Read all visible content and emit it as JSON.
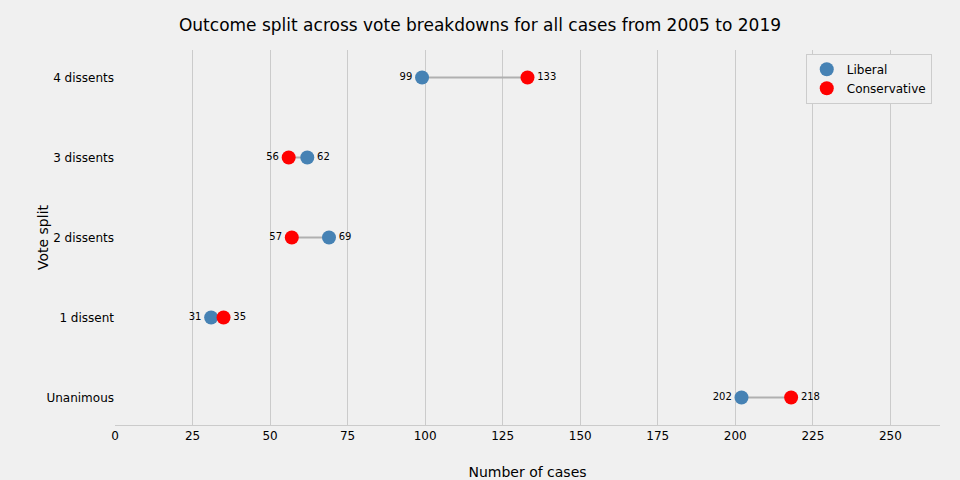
{
  "chart_data": {
    "type": "dumbbell",
    "title": "Outcome split across vote breakdowns for all cases from 2005 to 2019",
    "x_label": "Number of cases",
    "y_label": "Vote split",
    "categories": [
      "Unanimous",
      "1 dissent",
      "2 dissents",
      "3 dissents",
      "4 dissents"
    ],
    "series": [
      {
        "name": "Liberal",
        "color": "#4682b4",
        "values": [
          202,
          31,
          69,
          62,
          99
        ]
      },
      {
        "name": "Conservative",
        "color": "#ff0000",
        "values": [
          218,
          35,
          57,
          56,
          133
        ]
      }
    ],
    "xlim": [
      0,
      266
    ],
    "xticks": [
      0,
      25,
      50,
      75,
      100,
      125,
      150,
      175,
      200,
      225,
      250
    ],
    "grid": true,
    "legend": "upper right",
    "data_labels": true,
    "marker": "circle"
  }
}
